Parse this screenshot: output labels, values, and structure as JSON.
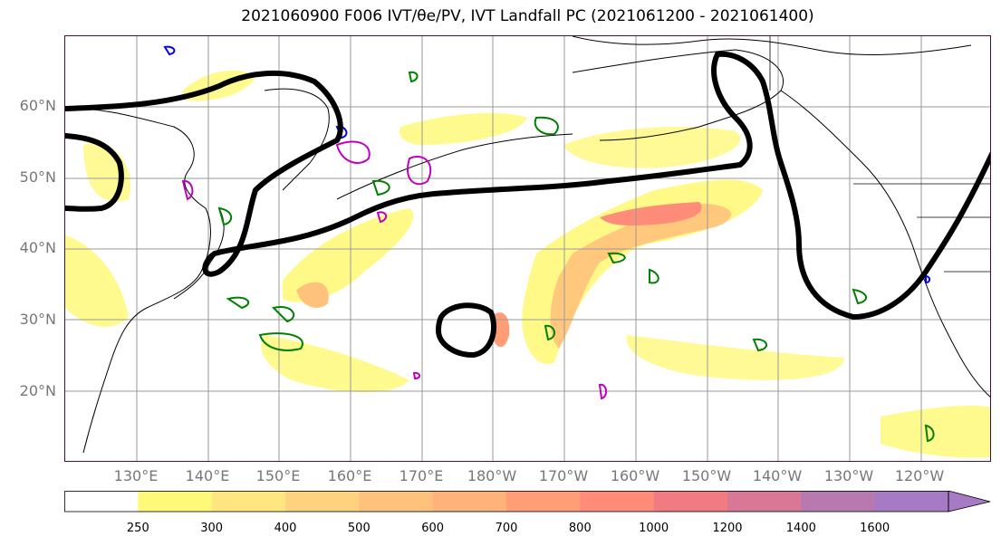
{
  "title": "2021060900 F006 IVT/θe/PV, IVT Landfall PC (2021061200 - 2021061400)",
  "lat_labels": [
    "60°N",
    "50°N",
    "40°N",
    "30°N",
    "20°N"
  ],
  "lon_labels": [
    "130°E",
    "140°E",
    "150°E",
    "160°E",
    "170°E",
    "180°W",
    "170°W",
    "160°W",
    "150°W",
    "140°W",
    "130°W",
    "120°W"
  ],
  "colorbar": {
    "ticks": [
      "250",
      "300",
      "400",
      "500",
      "600",
      "700",
      "800",
      "1000",
      "1200",
      "1400",
      "1600"
    ],
    "colors": [
      "#ffffff",
      "#fff97a",
      "#ffe680",
      "#ffd27f",
      "#ffc27c",
      "#ffb27a",
      "#ff9e76",
      "#ff8c78",
      "#f07c82",
      "#d87896",
      "#b878b0",
      "#a67ac4"
    ]
  },
  "colors": {
    "ivt_low": "#fff97a",
    "ivt_high": "#ff8c78",
    "pv_contour": "#000000",
    "theta_e_contour": "#008000",
    "magenta_contour": "#c000c0",
    "blue_contour": "#0000ff",
    "grid": "#999999"
  }
}
